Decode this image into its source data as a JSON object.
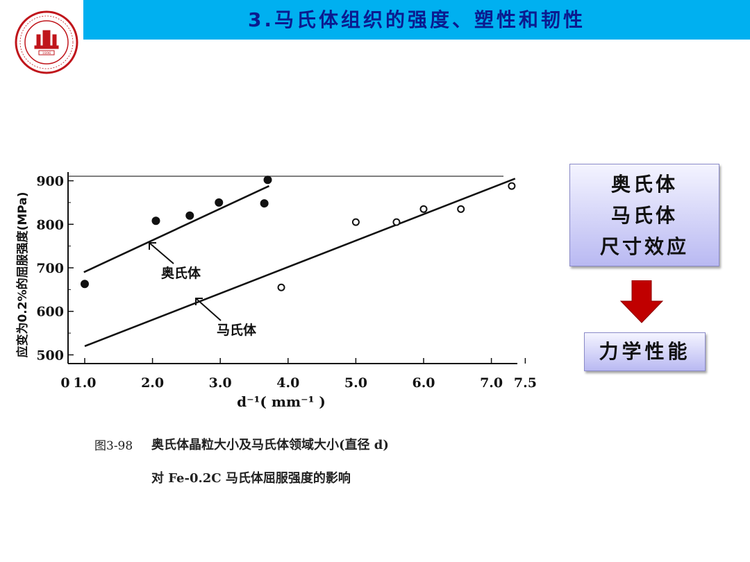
{
  "slide": {
    "title": "3.马氏体组织的强度、塑性和韧性"
  },
  "logo": {
    "name": "shanghai-jiao-tong-university-seal",
    "year_text": "1896",
    "ring_text": "SHANGHAI JIAO TONG UNIVERSITY",
    "color": "#C0151B"
  },
  "concept_box": {
    "lines": [
      "奥氏体",
      "马氏体",
      "尺寸效应"
    ]
  },
  "result_box": {
    "label": "力学性能"
  },
  "colors": {
    "header_bar": "#00B0F0",
    "title_text": "#0B1B8F",
    "arrow": "#C00000",
    "box_fill_top": "#F4F4FF",
    "box_fill_bottom": "#B9B9F2"
  },
  "figure": {
    "caption_number": "图3-98",
    "caption_line1": "奥氏体晶粒大小及马氏体领域大小(直径 d)",
    "caption_line2": "对 Fe-0.2C 马氏体屈服强度的影响"
  },
  "chart_data": {
    "type": "scatter",
    "xlabel": "d⁻¹( mm⁻¹ )",
    "ylabel": "应变为0.2%的屈服强度(MPa)",
    "xlim": [
      0,
      7.5
    ],
    "ylim": [
      480,
      920
    ],
    "x_ticks": [
      "0",
      "1.0",
      "2.0",
      "3.0",
      "4.0",
      "5.0",
      "6.0",
      "7.0",
      "7.5"
    ],
    "x_tick_values": [
      0,
      1.0,
      2.0,
      3.0,
      4.0,
      5.0,
      6.0,
      7.0,
      7.5
    ],
    "y_ticks": [
      "500",
      "600",
      "700",
      "800",
      "900"
    ],
    "y_tick_values": [
      500,
      600,
      700,
      800,
      900
    ],
    "grid": false,
    "series": [
      {
        "name": "奥氏体",
        "marker": "filled",
        "points": [
          [
            1.0,
            663
          ],
          [
            2.05,
            808
          ],
          [
            2.55,
            820
          ],
          [
            2.98,
            850
          ],
          [
            3.65,
            848
          ],
          [
            3.7,
            902
          ]
        ],
        "fit_line": [
          [
            0.95,
            690
          ],
          [
            3.72,
            888
          ]
        ]
      },
      {
        "name": "马氏体",
        "marker": "open",
        "points": [
          [
            3.9,
            655
          ],
          [
            5.0,
            805
          ],
          [
            5.6,
            805
          ],
          [
            6.0,
            835
          ],
          [
            6.55,
            835
          ],
          [
            7.3,
            888
          ]
        ],
        "fit_line": [
          [
            1.0,
            520
          ],
          [
            7.35,
            905
          ]
        ]
      }
    ]
  }
}
